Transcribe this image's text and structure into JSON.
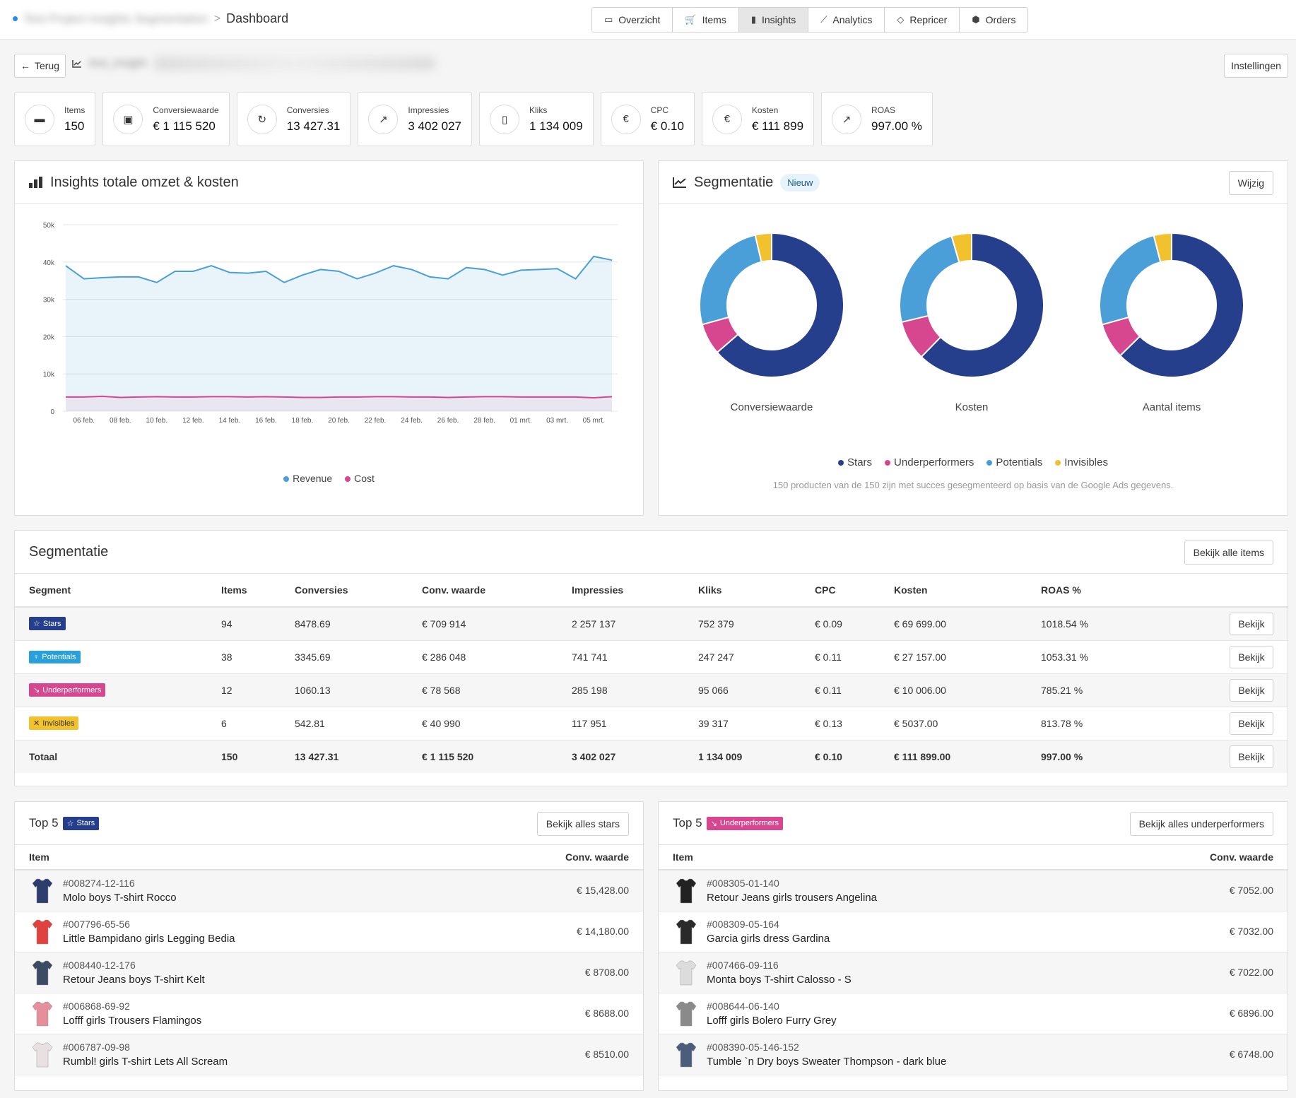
{
  "breadcrumb": {
    "project": "Test Project Insights Segmentation",
    "separator": ">",
    "current": "Dashboard"
  },
  "nav": [
    {
      "label": "Overzicht",
      "icon": "presentation-icon",
      "glyph": "▭",
      "active": false
    },
    {
      "label": "Items",
      "icon": "cart-icon",
      "glyph": "🛒",
      "active": false
    },
    {
      "label": "Insights",
      "icon": "bar-chart-icon",
      "glyph": "▮",
      "active": true
    },
    {
      "label": "Analytics",
      "icon": "line-chart-icon",
      "glyph": "⟋",
      "active": false
    },
    {
      "label": "Repricer",
      "icon": "tag-icon",
      "glyph": "◇",
      "active": false
    },
    {
      "label": "Orders",
      "icon": "box-icon",
      "glyph": "⬢",
      "active": false
    }
  ],
  "back_label": "Terug",
  "insight_name": "test_insight",
  "settings_label": "Instellingen",
  "kpis": [
    {
      "label": "Items",
      "value": "150",
      "icon": "items-icon",
      "glyph": "▬"
    },
    {
      "label": "Conversiewaarde",
      "value": "€ 1 115 520",
      "icon": "money-icon",
      "glyph": "▣"
    },
    {
      "label": "Conversies",
      "value": "13 427.31",
      "icon": "refresh-icon",
      "glyph": "↻"
    },
    {
      "label": "Impressies",
      "value": "3 402 027",
      "icon": "line-chart-icon",
      "glyph": "↗"
    },
    {
      "label": "Kliks",
      "value": "1 134 009",
      "icon": "mouse-icon",
      "glyph": "▯"
    },
    {
      "label": "CPC",
      "value": "€ 0.10",
      "icon": "euro-icon",
      "glyph": "€"
    },
    {
      "label": "Kosten",
      "value": "€ 111 899",
      "icon": "euro-icon",
      "glyph": "€"
    },
    {
      "label": "ROAS",
      "value": "997.00 %",
      "icon": "line-chart-icon",
      "glyph": "↗"
    }
  ],
  "revenue_panel": {
    "title": "Insights totale omzet & kosten"
  },
  "segment_panel": {
    "title": "Segmentatie",
    "badge": "Nieuw",
    "edit_label": "Wijzig",
    "note": "150 producten van de 150 zijn met succes gesegmenteerd op basis van de Google Ads gegevens."
  },
  "chart_data": [
    {
      "type": "area",
      "x": [
        "05 feb.",
        "06 feb.",
        "07 feb.",
        "08 feb.",
        "09 feb.",
        "10 feb.",
        "11 feb.",
        "12 feb.",
        "13 feb.",
        "14 feb.",
        "15 feb.",
        "16 feb.",
        "17 feb.",
        "18 feb.",
        "19 feb.",
        "20 feb.",
        "21 feb.",
        "22 feb.",
        "23 feb.",
        "24 feb.",
        "25 feb.",
        "26 feb.",
        "27 feb.",
        "28 feb.",
        "29 feb.",
        "01 mrt.",
        "02 mrt.",
        "03 mrt.",
        "04 mrt.",
        "05 mrt.",
        "06 mrt."
      ],
      "xticks": [
        "06 feb.",
        "08 feb.",
        "10 feb.",
        "12 feb.",
        "14 feb.",
        "16 feb.",
        "18 feb.",
        "20 feb.",
        "22 feb.",
        "24 feb.",
        "26 feb.",
        "28 feb.",
        "01 mrt.",
        "03 mrt.",
        "05 mrt."
      ],
      "yticks": [
        "0",
        "10k",
        "20k",
        "30k",
        "40k",
        "50k"
      ],
      "ylim": [
        0,
        50000
      ],
      "series": [
        {
          "name": "Revenue",
          "color": "#4a9fd8",
          "values": [
            39000,
            35500,
            35800,
            36000,
            36000,
            34500,
            37500,
            37500,
            39000,
            37200,
            37000,
            37500,
            34500,
            36500,
            38000,
            37500,
            35500,
            37000,
            39000,
            38000,
            36000,
            35500,
            38500,
            38000,
            36500,
            37800,
            38000,
            38200,
            35500,
            41500,
            40500
          ]
        },
        {
          "name": "Cost",
          "color": "#d6478f",
          "values": [
            3800,
            3800,
            4000,
            3700,
            3800,
            3900,
            3800,
            3800,
            3900,
            3900,
            3800,
            3900,
            3800,
            3700,
            3700,
            3800,
            3800,
            3900,
            3900,
            3800,
            3800,
            3700,
            3800,
            3900,
            3900,
            3800,
            3800,
            3800,
            3800,
            3600,
            3900
          ]
        }
      ]
    },
    {
      "type": "pie",
      "title": "Conversiewaarde",
      "categories": [
        "Stars",
        "Underperformers",
        "Potentials",
        "Invisibles"
      ],
      "values": [
        709914,
        78568,
        286048,
        40990
      ]
    },
    {
      "type": "pie",
      "title": "Kosten",
      "categories": [
        "Stars",
        "Underperformers",
        "Potentials",
        "Invisibles"
      ],
      "values": [
        69699,
        10006,
        27157,
        5037
      ]
    },
    {
      "type": "pie",
      "title": "Aantal items",
      "categories": [
        "Stars",
        "Underperformers",
        "Potentials",
        "Invisibles"
      ],
      "values": [
        94,
        12,
        38,
        6
      ]
    }
  ],
  "pie_legend": [
    {
      "label": "Stars",
      "color": "#263f8c"
    },
    {
      "label": "Underperformers",
      "color": "#d6478f"
    },
    {
      "label": "Potentials",
      "color": "#4a9fd8"
    },
    {
      "label": "Invisibles",
      "color": "#f2c12e"
    }
  ],
  "segment_table": {
    "title": "Segmentatie",
    "view_all_label": "Bekijk alle items",
    "columns": [
      "Segment",
      "Items",
      "Conversies",
      "Conv. waarde",
      "Impressies",
      "Kliks",
      "CPC",
      "Kosten",
      "ROAS %"
    ],
    "view_label": "Bekijk",
    "rows": [
      {
        "segment": "Stars",
        "cls": "stars",
        "glyph": "☆",
        "items": "94",
        "conversies": "8478.69",
        "conv_waarde": "€ 709 914",
        "impressies": "2 257 137",
        "kliks": "752 379",
        "cpc": "€ 0.09",
        "kosten": "€ 69 699.00",
        "roas": "1018.54 %"
      },
      {
        "segment": "Potentials",
        "cls": "potentials",
        "glyph": "♀",
        "items": "38",
        "conversies": "3345.69",
        "conv_waarde": "€ 286 048",
        "impressies": "741 741",
        "kliks": "247 247",
        "cpc": "€ 0.11",
        "kosten": "€ 27 157.00",
        "roas": "1053.31 %"
      },
      {
        "segment": "Underperformers",
        "cls": "under",
        "glyph": "↘",
        "items": "12",
        "conversies": "1060.13",
        "conv_waarde": "€ 78 568",
        "impressies": "285 198",
        "kliks": "95 066",
        "cpc": "€ 0.11",
        "kosten": "€ 10 006.00",
        "roas": "785.21 %"
      },
      {
        "segment": "Invisibles",
        "cls": "invis",
        "glyph": "✕",
        "items": "6",
        "conversies": "542.81",
        "conv_waarde": "€ 40 990",
        "impressies": "117 951",
        "kliks": "39 317",
        "cpc": "€ 0.13",
        "kosten": "€ 5037.00",
        "roas": "813.78 %"
      }
    ],
    "total": {
      "segment": "Totaal",
      "items": "150",
      "conversies": "13 427.31",
      "conv_waarde": "€ 1 115 520",
      "impressies": "3 402 027",
      "kliks": "1 134 009",
      "cpc": "€ 0.10",
      "kosten": "€ 111 899.00",
      "roas": "997.00 %"
    }
  },
  "top_stars": {
    "title": "Top 5",
    "tag": "Stars",
    "button": "Bekijk alles stars",
    "col_item": "Item",
    "col_value": "Conv. waarde",
    "items": [
      {
        "id": "#008274-12-116",
        "name": "Molo boys T-shirt Rocco",
        "value": "€ 15,428.00",
        "color": "#2d3e6e"
      },
      {
        "id": "#007796-65-56",
        "name": "Little Bampidano girls Legging Bedia",
        "value": "€ 14,180.00",
        "color": "#e0433f"
      },
      {
        "id": "#008440-12-176",
        "name": "Retour Jeans boys T-shirt Kelt",
        "value": "€ 8708.00",
        "color": "#3b4b63"
      },
      {
        "id": "#006868-69-92",
        "name": "Lofff girls Trousers Flamingos",
        "value": "€ 8688.00",
        "color": "#e58e9c"
      },
      {
        "id": "#006787-09-98",
        "name": "Rumbl! girls T-shirt Lets All Scream",
        "value": "€ 8510.00",
        "color": "#e9e1e1"
      }
    ]
  },
  "top_under": {
    "title": "Top 5",
    "tag": "Underperformers",
    "button": "Bekijk alles underperformers",
    "col_item": "Item",
    "col_value": "Conv. waarde",
    "items": [
      {
        "id": "#008305-01-140",
        "name": "Retour Jeans girls trousers Angelina",
        "value": "€ 7052.00",
        "color": "#222222"
      },
      {
        "id": "#008309-05-164",
        "name": "Garcia girls dress Gardina",
        "value": "€ 7032.00",
        "color": "#2a2a2a"
      },
      {
        "id": "#007466-09-116",
        "name": "Monta boys T-shirt Calosso - S",
        "value": "€ 7022.00",
        "color": "#dcdcdc"
      },
      {
        "id": "#008644-06-140",
        "name": "Lofff girls Bolero Furry Grey",
        "value": "€ 6896.00",
        "color": "#8a8a8a"
      },
      {
        "id": "#008390-05-146-152",
        "name": "Tumble `n Dry boys Sweater Thompson - dark blue",
        "value": "€ 6748.00",
        "color": "#4b5c7c"
      }
    ]
  }
}
